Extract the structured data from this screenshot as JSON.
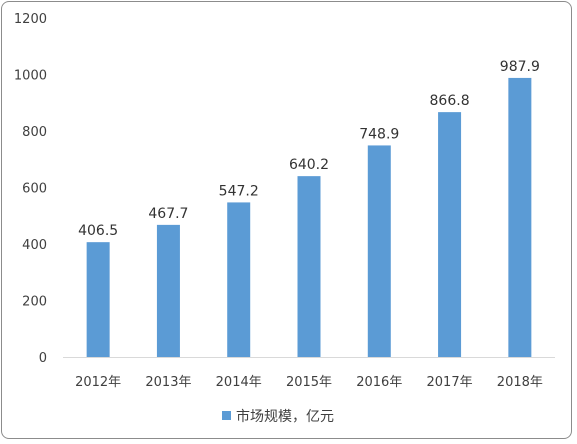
{
  "chart_data": {
    "type": "bar",
    "categories": [
      "2012年",
      "2013年",
      "2014年",
      "2015年",
      "2016年",
      "2017年",
      "2018年"
    ],
    "series": [
      {
        "name": "市场规模，亿元",
        "values": [
          406.5,
          467.7,
          547.2,
          640.2,
          748.9,
          866.8,
          987.9
        ]
      }
    ],
    "data_labels": [
      "406.5",
      "467.7",
      "547.2",
      "640.2",
      "748.9",
      "866.8",
      "987.9"
    ],
    "y_ticks": [
      "0",
      "200",
      "400",
      "600",
      "800",
      "1000",
      "1200"
    ],
    "ylim": [
      0,
      1200
    ],
    "grid": false,
    "legend_position": "bottom",
    "colors": {
      "bar": "#5b9bd5",
      "axis": "#d9d9d9",
      "frame": "#8c8c8c"
    }
  }
}
